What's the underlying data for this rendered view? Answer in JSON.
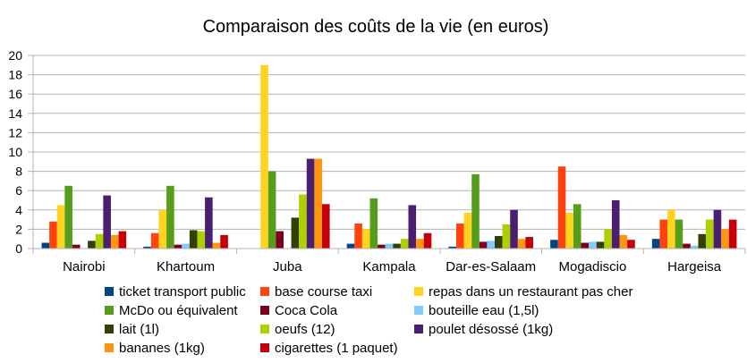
{
  "chart_data": {
    "type": "bar",
    "title": "Comparaison des coûts de la vie (en euros)",
    "xlabel": "",
    "ylabel": "",
    "ylim": [
      0,
      20
    ],
    "yticks": [
      "0",
      "2",
      "4",
      "6",
      "8",
      "10",
      "12",
      "14",
      "16",
      "18",
      "20"
    ],
    "grid": true,
    "legend_position": "bottom",
    "categories": [
      "Nairobi",
      "Khartoum",
      "Juba",
      "Kampala",
      "Dar-es-Salaam",
      "Mogadiscio",
      "Hargeisa"
    ],
    "series": [
      {
        "name": "ticket transport public",
        "color": "#004586",
        "values": [
          0.6,
          0.2,
          0,
          0.5,
          0.2,
          0.9,
          1.0
        ]
      },
      {
        "name": "base course taxi",
        "color": "#ff420e",
        "values": [
          2.8,
          1.6,
          0,
          2.6,
          2.6,
          8.5,
          3.0
        ]
      },
      {
        "name": "repas dans un restaurant pas cher",
        "color": "#ffd320",
        "values": [
          4.5,
          4.0,
          19.0,
          2.0,
          3.7,
          3.7,
          4.0
        ]
      },
      {
        "name": "McDo ou équivalent",
        "color": "#579d1c",
        "values": [
          6.5,
          6.5,
          8.0,
          5.2,
          7.7,
          4.6,
          3.0
        ]
      },
      {
        "name": "Coca Cola",
        "color": "#7e0021",
        "values": [
          0.4,
          0.4,
          1.8,
          0.4,
          0.7,
          0.6,
          0.5
        ]
      },
      {
        "name": "bouteille eau (1,5l)",
        "color": "#83caff",
        "values": [
          0,
          0.5,
          0,
          0.5,
          0.8,
          0.7,
          0.3
        ]
      },
      {
        "name": "lait (1l)",
        "color": "#314004",
        "values": [
          0.8,
          1.9,
          3.2,
          0.5,
          1.3,
          0.7,
          1.5
        ]
      },
      {
        "name": "oeufs (12)",
        "color": "#aecf00",
        "values": [
          1.5,
          1.8,
          5.6,
          1.0,
          2.5,
          2.0,
          3.0
        ]
      },
      {
        "name": "poulet désossé (1kg)",
        "color": "#4b1f6f",
        "values": [
          5.5,
          5.3,
          9.3,
          4.5,
          4.0,
          5.0,
          4.0
        ]
      },
      {
        "name": "bananes (1kg)",
        "color": "#ff950e",
        "values": [
          1.4,
          0.6,
          9.3,
          1.0,
          1.0,
          1.4,
          2.0
        ]
      },
      {
        "name": "cigarettes (1 paquet)",
        "color": "#c5000b",
        "values": [
          1.8,
          1.4,
          4.6,
          1.6,
          1.2,
          0.9,
          3.0
        ]
      }
    ]
  }
}
